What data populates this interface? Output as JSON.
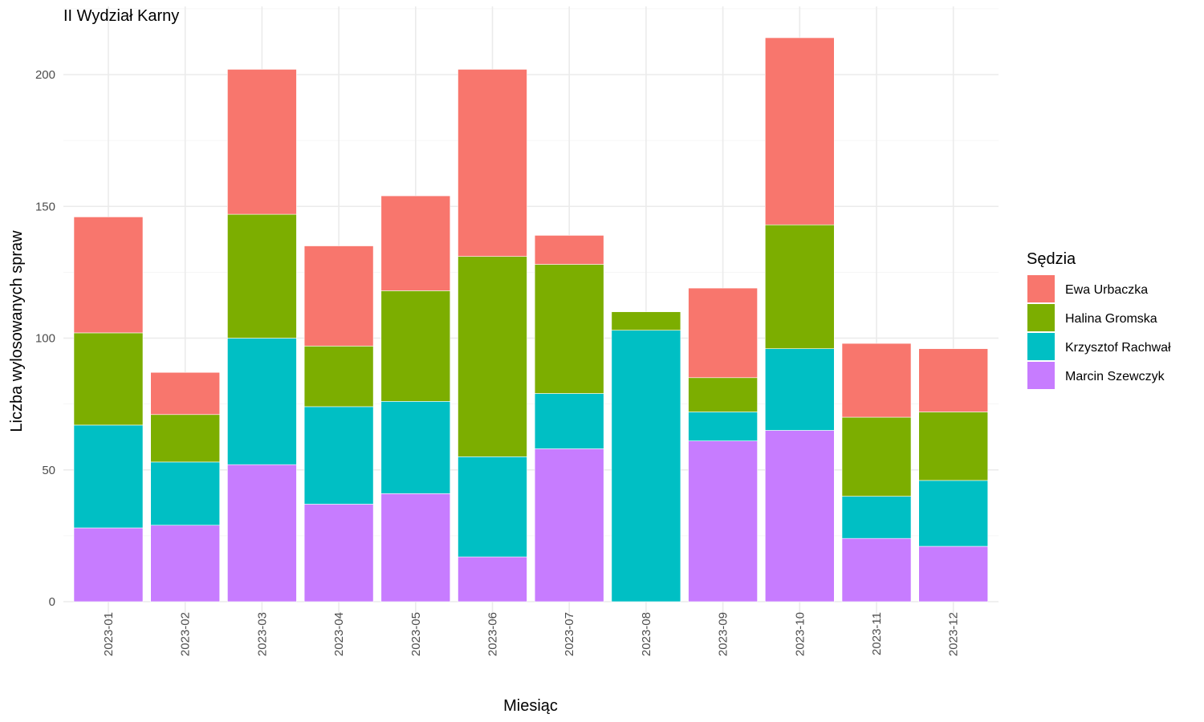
{
  "chart_data": {
    "type": "bar",
    "stacked": true,
    "title": "II Wydział Karny",
    "xlabel": "Miesiąc",
    "ylabel": "Liczba wylosowanych spraw",
    "ylim": [
      0,
      225
    ],
    "yticks": [
      0,
      50,
      100,
      150,
      200
    ],
    "grid": true,
    "legend_position": "right",
    "legend_title": "Sędzia",
    "categories": [
      "2023-01",
      "2023-02",
      "2023-03",
      "2023-04",
      "2023-05",
      "2023-06",
      "2023-07",
      "2023-08",
      "2023-09",
      "2023-10",
      "2023-11",
      "2023-12"
    ],
    "series": [
      {
        "name": "Ewa Urbaczka",
        "color": "#F8766D",
        "values": [
          44,
          16,
          55,
          38,
          36,
          71,
          11,
          0,
          34,
          71,
          28,
          24
        ]
      },
      {
        "name": "Halina Gromska",
        "color": "#7CAE00",
        "values": [
          35,
          18,
          47,
          23,
          42,
          76,
          49,
          7,
          13,
          47,
          30,
          26
        ]
      },
      {
        "name": "Krzysztof Rachwał",
        "color": "#00BFC4",
        "values": [
          39,
          24,
          48,
          37,
          35,
          38,
          21,
          103,
          11,
          31,
          16,
          25
        ]
      },
      {
        "name": "Marcin Szewczyk",
        "color": "#C77CFF",
        "values": [
          28,
          29,
          52,
          37,
          41,
          17,
          58,
          0,
          61,
          65,
          24,
          21
        ]
      }
    ]
  }
}
